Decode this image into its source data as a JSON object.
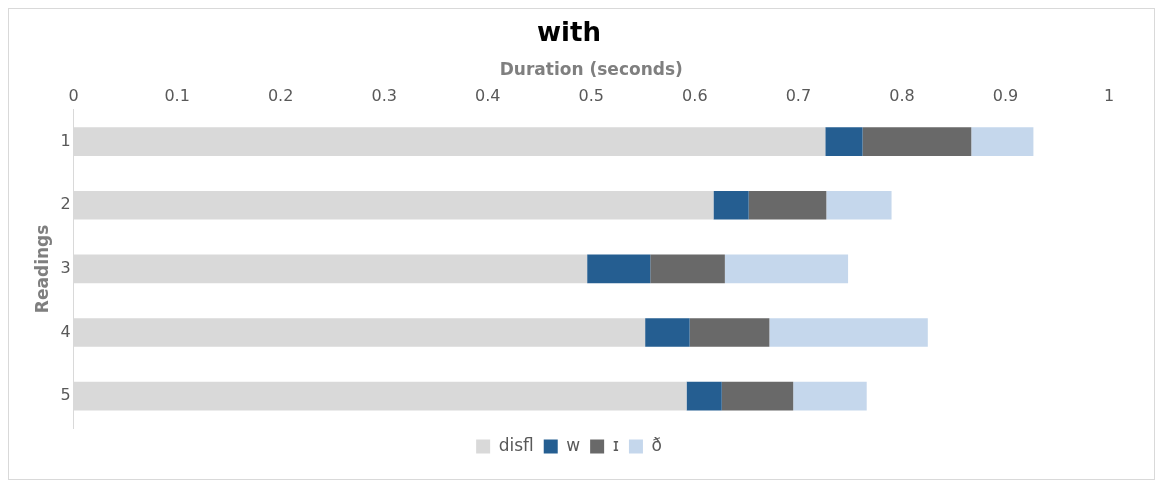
{
  "chart_data": {
    "type": "bar",
    "orientation": "horizontal",
    "stacked": true,
    "title": "with",
    "xlabel": "Duration (seconds)",
    "ylabel": "Readings",
    "categories": [
      "1",
      "2",
      "3",
      "4",
      "5"
    ],
    "series": [
      {
        "name": "disfl",
        "color": "#d9d9d9",
        "values": [
          0.726,
          0.618,
          0.496,
          0.552,
          0.592
        ]
      },
      {
        "name": "w",
        "color": "#255e91",
        "values": [
          0.036,
          0.034,
          0.061,
          0.043,
          0.034
        ]
      },
      {
        "name": "ɪ",
        "color": "#696969",
        "values": [
          0.105,
          0.075,
          0.072,
          0.077,
          0.069
        ]
      },
      {
        "name": "ð",
        "color": "#c5d7ec",
        "values": [
          0.06,
          0.063,
          0.119,
          0.153,
          0.071
        ]
      }
    ],
    "xlim": [
      0,
      1
    ],
    "xticks": [
      0,
      0.1,
      0.2,
      0.3,
      0.4,
      0.5,
      0.6,
      0.7,
      0.8,
      0.9,
      1
    ],
    "grid": false,
    "legend": "bottom"
  }
}
